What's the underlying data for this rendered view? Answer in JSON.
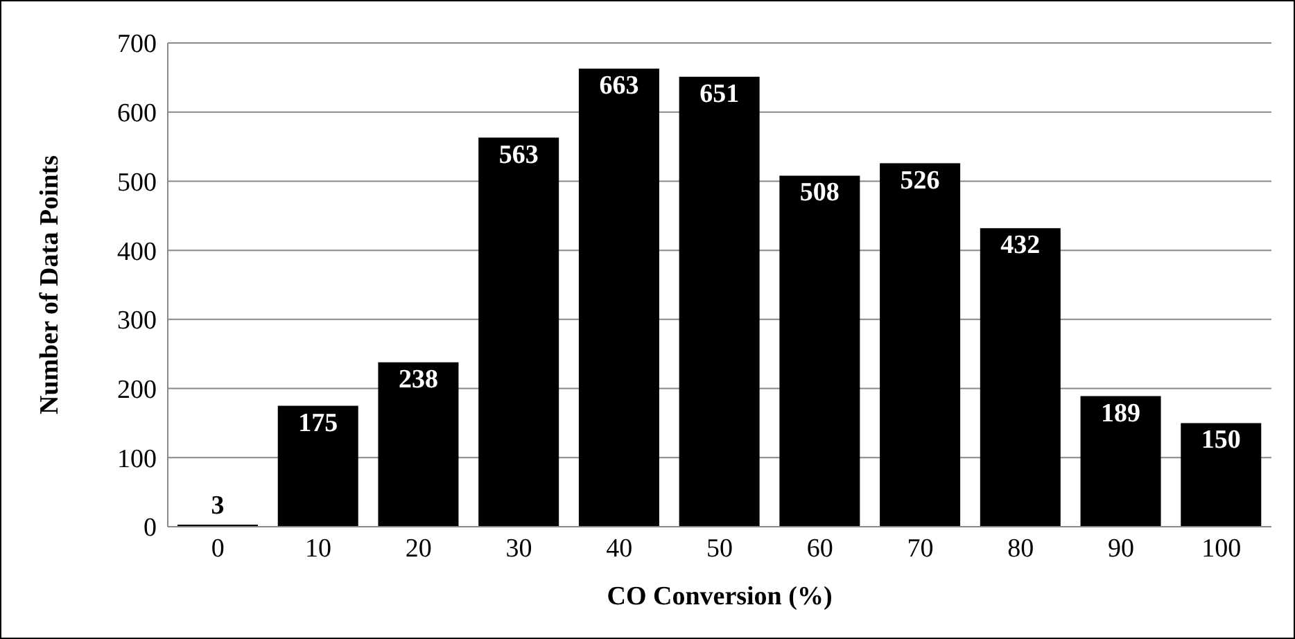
{
  "chart_data": {
    "type": "bar",
    "xlabel": "CO Conversion (%)",
    "ylabel": "Number of Data Points",
    "categories": [
      "0",
      "10",
      "20",
      "30",
      "40",
      "50",
      "60",
      "70",
      "80",
      "90",
      "100"
    ],
    "values": [
      3,
      175,
      238,
      563,
      663,
      651,
      508,
      526,
      432,
      189,
      150
    ],
    "color": "#000000",
    "data_labels": true,
    "grid": "y",
    "ylim": [
      0,
      700
    ],
    "yticks": [
      0,
      100,
      200,
      300,
      400,
      500,
      600,
      700
    ]
  }
}
